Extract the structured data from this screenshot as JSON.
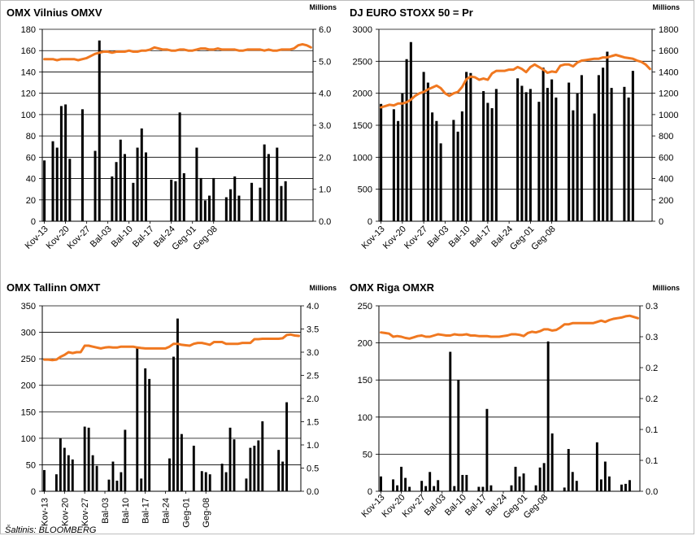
{
  "source_note": "Šaltinis: BLOOMBERG",
  "colors": {
    "bars": "#000000",
    "line": "#f07820",
    "grid": "#000000",
    "text": "#000000"
  },
  "chart_data": [
    {
      "type": "bar",
      "title": "OMX Vilnius OMXV",
      "right_unit": "Millions",
      "left_ylim": [
        0,
        180
      ],
      "left_ticks": [
        0,
        20,
        40,
        60,
        80,
        100,
        120,
        140,
        160,
        180
      ],
      "right_ylim": [
        0,
        6
      ],
      "right_ticks": [
        "0.0",
        "1.0",
        "2.0",
        "3.0",
        "4.0",
        "5.0",
        "6.0"
      ],
      "x_labels": [
        "Kov-13",
        "Kov-20",
        "Kov-27",
        "Bal-03",
        "Bal-10",
        "Bal-17",
        "Bal-24",
        "Geg-01",
        "Geg-08"
      ],
      "grid": true,
      "bars_axis": "right",
      "line_axis": "left",
      "n": 64,
      "bars": [
        1.9,
        null,
        2.5,
        2.3,
        3.6,
        3.65,
        1.95,
        null,
        null,
        3.5,
        null,
        null,
        2.2,
        5.65,
        null,
        null,
        1.4,
        1.85,
        2.55,
        2.1,
        null,
        1.2,
        2.3,
        2.9,
        2.15,
        null,
        null,
        null,
        null,
        null,
        1.3,
        1.25,
        3.4,
        1.5,
        null,
        null,
        2.3,
        1.35,
        0.65,
        0.8,
        1.35,
        null,
        null,
        0.75,
        1.0,
        1.4,
        0.8,
        null,
        null,
        1.2,
        null,
        1.05,
        2.4,
        2.1,
        null,
        2.3,
        1.1,
        1.25,
        null,
        null,
        null,
        null,
        null,
        null
      ],
      "line": [
        152,
        152,
        152,
        151,
        152,
        152,
        152,
        152,
        151,
        152,
        153,
        155,
        157,
        158,
        159,
        159,
        158,
        159,
        159,
        159,
        160,
        159,
        159,
        160,
        160,
        161,
        163,
        162,
        161,
        161,
        160,
        160,
        161,
        161,
        160,
        160,
        161,
        162,
        162,
        161,
        161,
        162,
        161,
        161,
        161,
        161,
        160,
        160,
        161,
        161,
        161,
        161,
        160,
        161,
        160,
        160,
        161,
        161,
        161,
        162,
        165,
        166,
        165,
        163
      ]
    },
    {
      "type": "bar",
      "title": "DJ EURO STOXX 50 = Pr",
      "right_unit": "Millions",
      "left_ylim": [
        0,
        3000
      ],
      "left_ticks": [
        0,
        500,
        1000,
        1500,
        2000,
        2500,
        3000
      ],
      "right_ylim": [
        0,
        1800
      ],
      "right_ticks": [
        "0",
        "200",
        "400",
        "600",
        "800",
        "1000",
        "1200",
        "1400",
        "1600",
        "1800"
      ],
      "x_labels": [
        "Kov-13",
        "Kov-20",
        "Kov-27",
        "Bal-03",
        "Bal-10",
        "Bal-17",
        "Bal-24",
        "Geg-01",
        "Geg-08"
      ],
      "grid": true,
      "bars_axis": "right",
      "line_axis": "left",
      "n": 64,
      "bars": [
        1100,
        null,
        null,
        1050,
        940,
        1200,
        1520,
        1680,
        null,
        null,
        1400,
        1300,
        1020,
        940,
        730,
        null,
        null,
        950,
        840,
        1030,
        1400,
        1390,
        null,
        null,
        1220,
        1110,
        1060,
        1240,
        null,
        null,
        null,
        null,
        1340,
        1270,
        1210,
        1240,
        null,
        1120,
        1440,
        1250,
        1330,
        1160,
        null,
        null,
        1300,
        1040,
        1200,
        1370,
        null,
        null,
        1010,
        1370,
        1440,
        1590,
        1250,
        null,
        null,
        1260,
        1160,
        1410,
        null,
        null,
        null,
        null
      ],
      "line": [
        1780,
        1800,
        1820,
        1810,
        1840,
        1840,
        1860,
        1900,
        1960,
        2000,
        2020,
        2060,
        2090,
        2120,
        2080,
        2000,
        1960,
        2000,
        2020,
        2100,
        2220,
        2260,
        2250,
        2210,
        2230,
        2210,
        2310,
        2350,
        2350,
        2350,
        2370,
        2370,
        2410,
        2380,
        2330,
        2410,
        2450,
        2410,
        2370,
        2320,
        2340,
        2330,
        2430,
        2450,
        2450,
        2420,
        2480,
        2510,
        2520,
        2530,
        2540,
        2540,
        2560,
        2560,
        2580,
        2600,
        2580,
        2560,
        2550,
        2540,
        2510,
        2490,
        2450,
        2380
      ]
    },
    {
      "type": "bar",
      "title": "OMX Tallinn OMXT",
      "right_unit": "Millions",
      "left_ylim": [
        0,
        350
      ],
      "left_ticks": [
        0,
        50,
        100,
        150,
        200,
        250,
        300,
        350
      ],
      "right_ylim": [
        0,
        4
      ],
      "right_ticks": [
        "0.0",
        "0.5",
        "1.0",
        "1.5",
        "2.0",
        "2.5",
        "3.0",
        "3.5",
        "4.0"
      ],
      "x_labels": [
        "Kov-13",
        "Kov-20",
        "Kov-27",
        "Bal-03",
        "Bal-10",
        "Bal-17",
        "Bal-24",
        "Geg-01",
        "Geg-08"
      ],
      "grid": true,
      "x_label_style": "vertical",
      "bars_axis": "left",
      "line_axis": "right",
      "n": 64,
      "bars": [
        40,
        null,
        null,
        32,
        100,
        82,
        68,
        60,
        null,
        null,
        122,
        120,
        68,
        48,
        null,
        null,
        22,
        56,
        20,
        36,
        116,
        null,
        null,
        272,
        24,
        232,
        212,
        null,
        null,
        null,
        null,
        62,
        254,
        326,
        108,
        null,
        null,
        86,
        null,
        38,
        36,
        32,
        null,
        null,
        52,
        36,
        120,
        98,
        null,
        null,
        24,
        82,
        86,
        96,
        132,
        null,
        null,
        null,
        78,
        56,
        168,
        null,
        null,
        null
      ],
      "line": [
        2.84,
        2.84,
        2.83,
        2.84,
        2.9,
        2.94,
        3.0,
        2.98,
        3.0,
        3.0,
        3.14,
        3.14,
        3.12,
        3.1,
        3.08,
        3.1,
        3.11,
        3.1,
        3.1,
        3.12,
        3.12,
        3.12,
        3.12,
        3.1,
        3.09,
        3.08,
        3.08,
        3.08,
        3.08,
        3.08,
        3.08,
        3.12,
        3.18,
        3.18,
        3.16,
        3.15,
        3.14,
        3.18,
        3.2,
        3.2,
        3.18,
        3.16,
        3.22,
        3.22,
        3.22,
        3.18,
        3.18,
        3.18,
        3.18,
        3.2,
        3.2,
        3.2,
        3.28,
        3.28,
        3.29,
        3.29,
        3.29,
        3.29,
        3.29,
        3.3,
        3.37,
        3.38,
        3.36,
        3.35
      ]
    },
    {
      "type": "bar",
      "title": "OMX Riga OMXR",
      "right_unit": "Millions",
      "left_ylim": [
        0,
        250
      ],
      "left_ticks": [
        0,
        50,
        100,
        150,
        200,
        250
      ],
      "right_ylim": [
        0,
        0.3
      ],
      "right_ticks": [
        "0.0",
        "0.1",
        "0.1",
        "0.2",
        "0.2",
        "0.3",
        "0.3"
      ],
      "x_labels": [
        "Kov-13",
        "Kov-20",
        "Kov-27",
        "Bal-03",
        "Bal-10",
        "Bal-17",
        "Bal-24",
        "Geg-01",
        "Geg-08"
      ],
      "grid": true,
      "bars_axis": "left",
      "line_axis": "right",
      "n": 64,
      "bars": [
        20,
        null,
        null,
        16,
        8,
        33,
        18,
        6,
        null,
        null,
        14,
        7,
        26,
        7,
        15,
        null,
        null,
        188,
        7,
        150,
        22,
        22,
        null,
        null,
        6,
        6,
        111,
        8,
        null,
        null,
        null,
        null,
        8,
        33,
        20,
        24,
        null,
        null,
        8,
        32,
        38,
        202,
        78,
        null,
        null,
        5,
        57,
        26,
        14,
        null,
        null,
        null,
        null,
        66,
        16,
        40,
        20,
        null,
        null,
        9,
        10,
        15,
        null,
        null
      ],
      "line": [
        0.257,
        0.256,
        0.255,
        0.25,
        0.251,
        0.25,
        0.248,
        0.247,
        0.249,
        0.251,
        0.252,
        0.25,
        0.25,
        0.252,
        0.254,
        0.253,
        0.252,
        0.252,
        0.254,
        0.253,
        0.253,
        0.254,
        0.252,
        0.252,
        0.251,
        0.251,
        0.251,
        0.25,
        0.25,
        0.25,
        0.251,
        0.252,
        0.254,
        0.254,
        0.253,
        0.251,
        0.256,
        0.258,
        0.257,
        0.259,
        0.262,
        0.262,
        0.26,
        0.261,
        0.265,
        0.27,
        0.27,
        0.272,
        0.272,
        0.272,
        0.272,
        0.272,
        0.272,
        0.274,
        0.276,
        0.274,
        0.277,
        0.279,
        0.28,
        0.281,
        0.283,
        0.284,
        0.282,
        0.28
      ]
    }
  ]
}
